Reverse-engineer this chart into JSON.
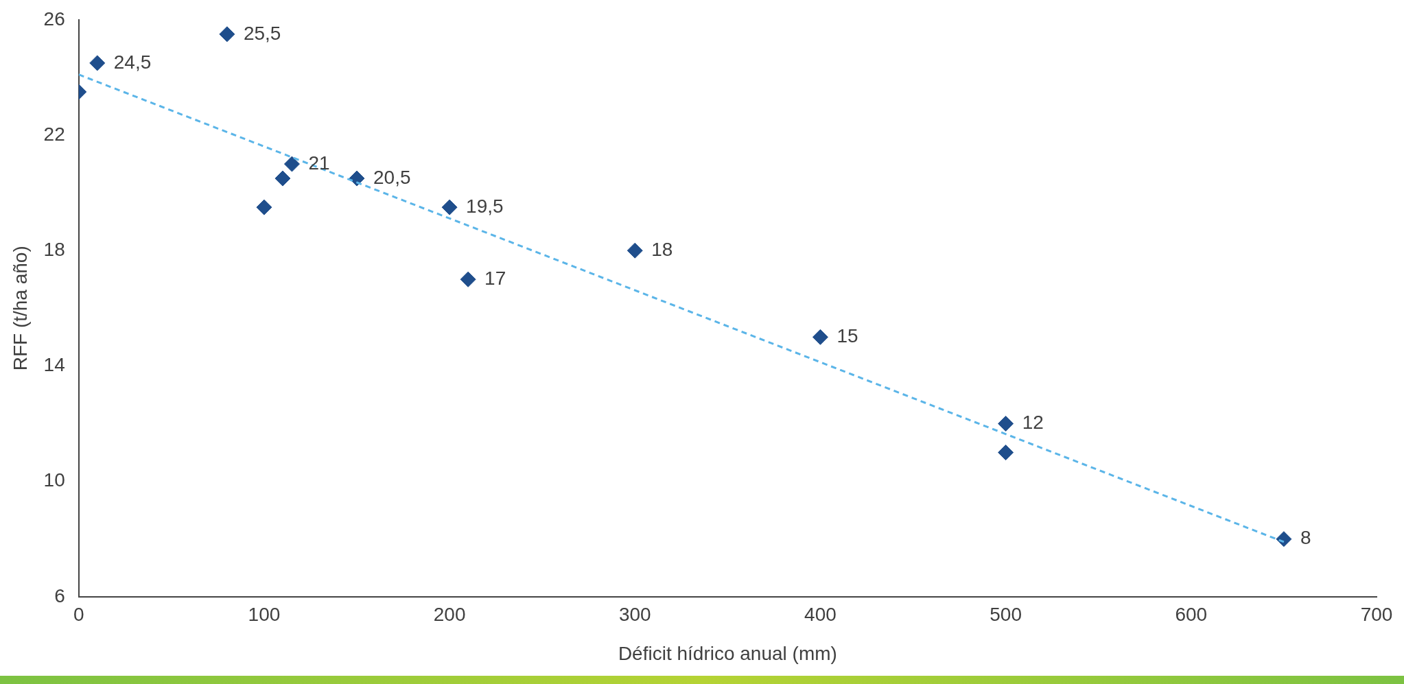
{
  "chart_data": {
    "type": "scatter",
    "xlabel": "Déficit hídrico anual (mm)",
    "ylabel": "RFF (t/ha año)",
    "xlim": [
      0,
      700
    ],
    "xticks": [
      0,
      100,
      200,
      300,
      400,
      500,
      600,
      700
    ],
    "ylim": [
      6,
      26
    ],
    "yticks": [
      6,
      10,
      14,
      18,
      22,
      26
    ],
    "grid": false,
    "legend": false,
    "marker": "diamond",
    "series": [
      {
        "color": "#1f4e8c",
        "x": [
          0,
          10,
          80,
          100,
          110,
          115,
          150,
          200,
          210,
          300,
          400,
          500,
          500,
          650
        ],
        "values": [
          23.5,
          24.5,
          25.5,
          19.5,
          20.5,
          21,
          20.5,
          19.5,
          17,
          18,
          15,
          12,
          11,
          8
        ],
        "value_labels": [
          null,
          "24,5",
          "25,5",
          null,
          null,
          "21",
          "20,5",
          "19,5",
          "17",
          "18",
          "15",
          "12",
          null,
          "8"
        ]
      },
      {
        "type": "line",
        "color": "#5bb5e8",
        "line_style": "dashed",
        "marker": "none",
        "x": [
          0,
          650
        ],
        "values": [
          24.1,
          7.9
        ]
      }
    ]
  }
}
